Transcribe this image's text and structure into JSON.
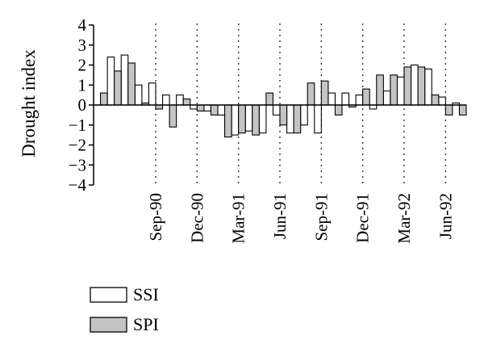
{
  "chart_data": {
    "type": "bar",
    "title": "",
    "xlabel": "",
    "ylabel": "Drought index",
    "ylim": [
      -4,
      4
    ],
    "yticks": [
      "4",
      "3",
      "2",
      "1",
      "0",
      "−1",
      "−2",
      "−3",
      "−4"
    ],
    "grid": "vertical dotted lines at labelled months",
    "legend_position": "bottom-left",
    "tick_labels": [
      "Sep-90",
      "Dec-90",
      "Mar-91",
      "Jun-91",
      "Sep-91",
      "Dec-91",
      "Mar-92",
      "Jun-92"
    ],
    "tick_category_index": [
      4,
      7,
      10,
      13,
      16,
      19,
      22,
      25
    ],
    "categories": [
      "May-90",
      "Jun-90",
      "Jul-90",
      "Aug-90",
      "Sep-90",
      "Oct-90",
      "Nov-90",
      "Dec-90",
      "Jan-91",
      "Feb-91",
      "Mar-91",
      "Apr-91",
      "May-91",
      "Jun-91",
      "Jul-91",
      "Aug-91",
      "Sep-91",
      "Oct-91",
      "Nov-91",
      "Dec-91",
      "Jan-92",
      "Feb-92",
      "Mar-92",
      "Apr-92",
      "May-92",
      "Jun-92",
      "Jul-92"
    ],
    "series": [
      {
        "name": "SSI",
        "color": "#ffffff",
        "values": [
          0.0,
          2.4,
          2.5,
          1.0,
          1.1,
          0.5,
          0.5,
          -0.2,
          -0.3,
          -0.5,
          -1.5,
          -1.3,
          -1.4,
          -0.5,
          -1.4,
          -1.0,
          -1.4,
          0.6,
          0.6,
          0.5,
          -0.2,
          0.7,
          1.4,
          2.0,
          1.8,
          0.4,
          0.1
        ]
      },
      {
        "name": "SPI",
        "color": "#c4c4c4",
        "values": [
          0.6,
          1.7,
          2.1,
          0.1,
          -0.2,
          -1.1,
          0.3,
          -0.3,
          -0.5,
          -1.6,
          -1.4,
          -1.5,
          0.6,
          -1.0,
          -1.4,
          1.1,
          1.2,
          -0.5,
          -0.1,
          0.8,
          1.5,
          1.5,
          1.9,
          1.9,
          0.5,
          -0.5,
          -0.5
        ]
      }
    ]
  }
}
